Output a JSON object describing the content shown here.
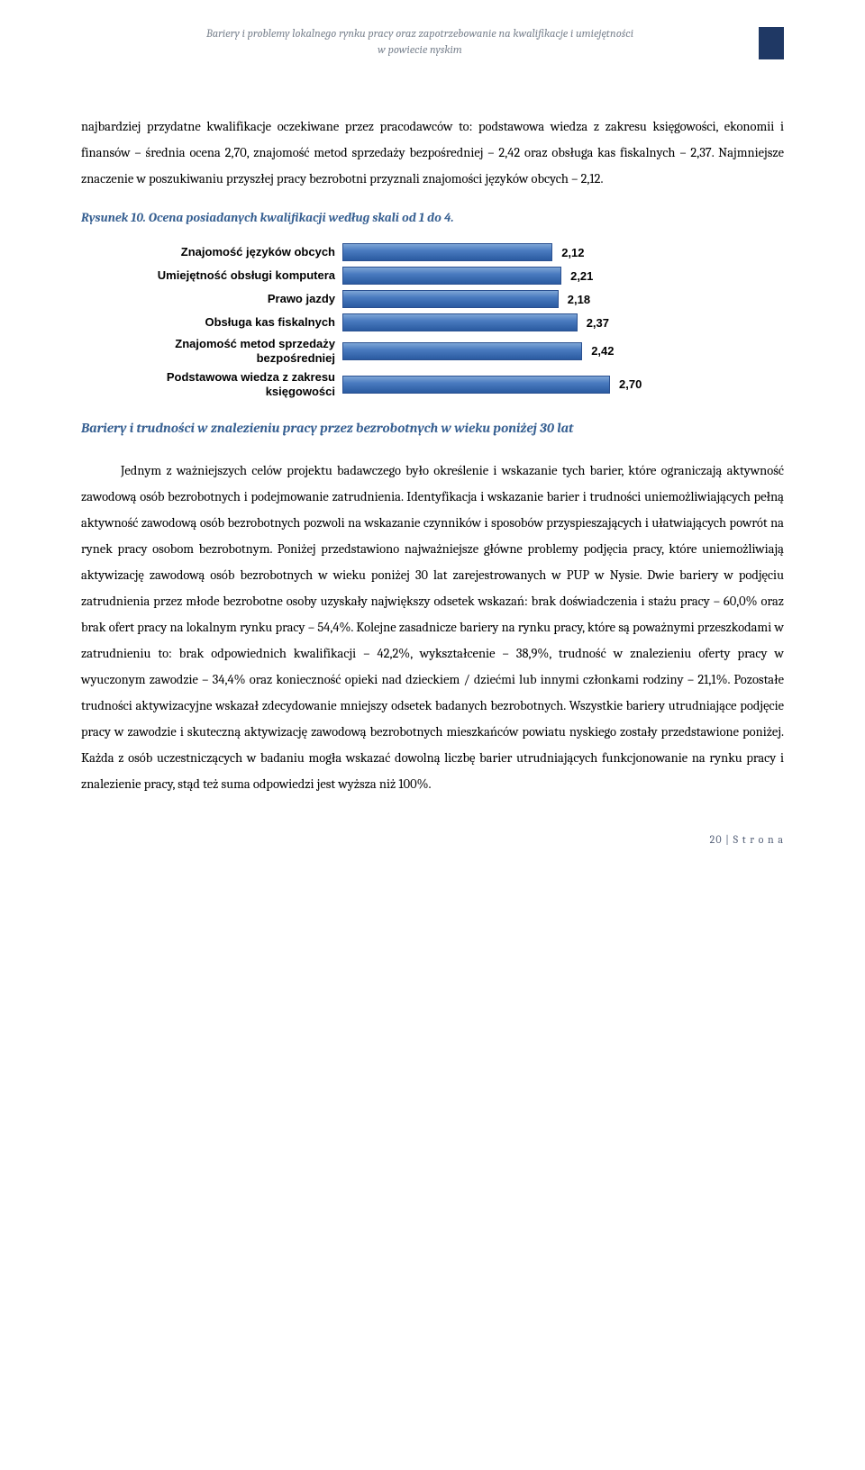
{
  "header": {
    "line1": "Bariery i problemy lokalnego rynku pracy oraz zapotrzebowanie na kwalifikacje i umiejętności",
    "line2": "w powiecie nyskim"
  },
  "para1": "najbardziej przydatne kwalifikacje oczekiwane przez pracodawców to: podstawowa wiedza z zakresu księgowości, ekonomii i finansów – średnia ocena 2,70, znajomość metod sprzedaży bezpośredniej – 2,42 oraz obsługa kas fiskalnych – 2,37. Najmniejsze znaczenie w poszukiwaniu przyszłej pracy bezrobotni przyznali znajomości języków obcych – 2,12.",
  "caption": "Rysunek 10. Ocena posiadanych kwalifikacji według skali od 1 do 4.",
  "chart": {
    "type": "bar",
    "xmax": 4.0,
    "bar_color_top": "#7ea6d6",
    "bar_color_bottom": "#2a5aa0",
    "items": [
      {
        "label": "Znajomość języków obcych",
        "value": 2.12,
        "display": "2,12"
      },
      {
        "label": "Umiejętność obsługi komputera",
        "value": 2.21,
        "display": "2,21"
      },
      {
        "label": "Prawo jazdy",
        "value": 2.18,
        "display": "2,18"
      },
      {
        "label": "Obsługa kas fiskalnych",
        "value": 2.37,
        "display": "2,37"
      },
      {
        "label": "Znajomość metod sprzedaży bezpośredniej",
        "value": 2.42,
        "display": "2,42"
      },
      {
        "label": "Podstawowa wiedza z zakresu księgowości",
        "value": 2.7,
        "display": "2,70"
      }
    ]
  },
  "section_title": "Bariery i trudności w znalezieniu pracy przez bezrobotnych w wieku poniżej 30 lat",
  "para2": "Jednym z ważniejszych celów projektu badawczego było określenie i wskazanie tych barier, które ograniczają aktywność zawodową osób bezrobotnych i podejmowanie zatrudnienia. Identyfikacja i wskazanie barier i trudności uniemożliwiających pełną aktywność zawodową osób bezrobotnych pozwoli na wskazanie czynników i sposobów przyspieszających i ułatwiających powrót na rynek pracy osobom bezrobotnym. Poniżej przedstawiono najważniejsze główne problemy podjęcia pracy, które uniemożliwiają aktywizację zawodową osób bezrobotnych w wieku poniżej 30 lat zarejestrowanych w PUP w Nysie. Dwie bariery w podjęciu zatrudnienia przez młode bezrobotne osoby uzyskały największy odsetek wskazań: brak doświadczenia i stażu pracy – 60,0% oraz brak ofert pracy na lokalnym rynku pracy – 54,4%. Kolejne zasadnicze bariery na rynku pracy, które są poważnymi przeszkodami w zatrudnieniu to: brak odpowiednich kwalifikacji – 42,2%, wykształcenie – 38,9%, trudność w znalezieniu oferty pracy w wyuczonym zawodzie – 34,4% oraz konieczność opieki nad dzieckiem / dziećmi lub innymi członkami rodziny – 21,1%. Pozostałe trudności aktywizacyjne wskazał zdecydowanie mniejszy odsetek badanych bezrobotnych. Wszystkie bariery utrudniające podjęcie pracy w zawodzie i skuteczną aktywizację zawodową bezrobotnych mieszkańców powiatu nyskiego zostały przedstawione poniżej. Każda z osób uczestniczących w badaniu mogła wskazać dowolną liczbę barier utrudniających funkcjonowanie na rynku pracy i znalezienie pracy, stąd też suma odpowiedzi jest wyższa niż 100%.",
  "footer": "20 | S t r o n a"
}
